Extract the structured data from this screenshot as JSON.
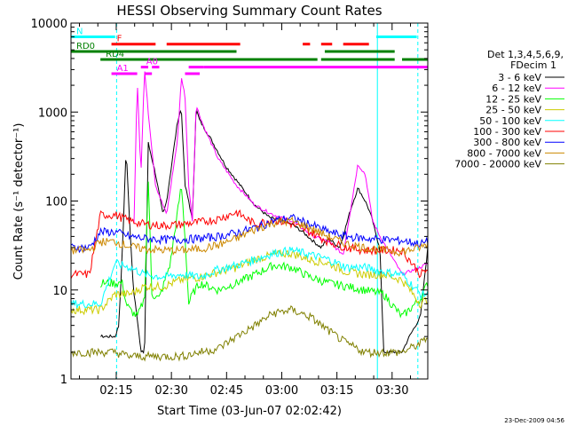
{
  "chart_data": {
    "type": "line",
    "title": "HESSI Observing Summary Count Rates",
    "xlabel": "Start Time (03-Jun-07 02:02:42)",
    "ylabel": "Count Rate (s⁻¹ detector⁻¹)",
    "y_scale": "log",
    "ylim": [
      1,
      10000
    ],
    "xlim_minutes": [
      0,
      97
    ],
    "x_tick_labels": [
      "02:15",
      "02:30",
      "02:45",
      "03:00",
      "03:15",
      "03:30"
    ],
    "x_tick_minutes": [
      12.3,
      27.3,
      42.3,
      57.3,
      72.3,
      87.3
    ],
    "y_tick_labels": [
      "1",
      "10",
      "100",
      "1000",
      "10000"
    ],
    "y_tick_values": [
      1,
      10,
      100,
      1000,
      10000
    ],
    "legend_header": [
      "Det 1,3,4,5,6,9,",
      "FDecim 1"
    ],
    "legend_position": "right",
    "series": [
      {
        "name": "3 - 6 keV",
        "color": "#000000",
        "x": [
          8,
          10,
          12,
          13,
          14,
          15,
          16,
          17,
          18,
          19,
          20,
          21,
          23,
          25,
          26,
          27,
          28,
          29,
          30,
          31,
          32,
          33,
          34,
          35,
          38,
          42,
          46,
          50,
          54,
          57,
          60,
          63,
          66,
          68,
          70,
          73,
          74,
          76,
          78,
          80,
          81,
          82,
          83,
          84,
          85,
          90,
          92,
          95,
          97
        ],
        "y": [
          3,
          3,
          3,
          4,
          30,
          400,
          50,
          10,
          5,
          2,
          2,
          450,
          200,
          70,
          100,
          200,
          400,
          800,
          1100,
          150,
          100,
          60,
          1100,
          800,
          500,
          250,
          150,
          90,
          65,
          60,
          55,
          45,
          35,
          30,
          38,
          30,
          40,
          80,
          140,
          100,
          80,
          60,
          40,
          30,
          2,
          2,
          3,
          5,
          30
        ]
      },
      {
        "name": "6 - 12 keV",
        "color": "#ff00ff",
        "x": [
          17,
          18,
          19,
          20,
          21,
          23,
          26,
          29,
          30,
          31,
          32,
          33,
          34,
          36,
          40,
          45,
          50,
          55,
          60,
          66,
          70,
          74,
          76,
          78,
          80,
          82,
          84,
          90,
          95,
          97
        ],
        "y": [
          30,
          2500,
          200,
          3000,
          1000,
          150,
          70,
          500,
          2500,
          1500,
          150,
          60,
          1200,
          700,
          300,
          150,
          90,
          70,
          60,
          40,
          35,
          25,
          80,
          260,
          200,
          60,
          40,
          15,
          18,
          20
        ]
      },
      {
        "name": "12 - 25 keV",
        "color": "#00ff00",
        "x": [
          8,
          12,
          14,
          15,
          16,
          18,
          20,
          21,
          22,
          24,
          27,
          30,
          31,
          32,
          33,
          35,
          40,
          45,
          50,
          55,
          60,
          65,
          70,
          75,
          80,
          85,
          90,
          95,
          97
        ],
        "y": [
          12,
          12,
          12,
          7,
          6,
          5,
          8,
          180,
          9,
          8,
          20,
          150,
          40,
          7,
          9,
          12,
          10,
          12,
          15,
          19,
          18,
          14,
          12,
          11,
          10,
          9,
          5,
          8,
          12
        ]
      },
      {
        "name": "25 - 50 keV",
        "color": "#cccc00",
        "x": [
          0,
          5,
          8,
          12,
          16,
          20,
          25,
          30,
          35,
          40,
          45,
          50,
          55,
          60,
          65,
          70,
          75,
          80,
          85,
          90,
          95,
          97
        ],
        "y": [
          6,
          6,
          6,
          9,
          9,
          11,
          11,
          13,
          14,
          16,
          18,
          22,
          25,
          26,
          22,
          20,
          16,
          15,
          15,
          13,
          7,
          8
        ]
      },
      {
        "name": "50 - 100 keV",
        "color": "#00ffff",
        "x": [
          0,
          5,
          8,
          12,
          16,
          20,
          25,
          30,
          35,
          40,
          45,
          50,
          55,
          60,
          65,
          70,
          75,
          80,
          85,
          90,
          95,
          97
        ],
        "y": [
          7,
          7,
          7,
          20,
          18,
          15,
          14,
          15,
          14,
          17,
          19,
          22,
          26,
          28,
          25,
          22,
          18,
          18,
          16,
          15,
          9,
          9
        ]
      },
      {
        "name": "100 - 300 keV",
        "color": "#ff0000",
        "x": [
          0,
          5,
          8,
          12,
          16,
          20,
          25,
          30,
          35,
          40,
          45,
          50,
          55,
          60,
          65,
          70,
          75,
          80,
          85,
          90,
          95,
          97
        ],
        "y": [
          15,
          15,
          70,
          70,
          60,
          55,
          53,
          55,
          58,
          63,
          75,
          55,
          62,
          55,
          45,
          35,
          30,
          28,
          28,
          28,
          15,
          17
        ]
      },
      {
        "name": "300 - 800 keV",
        "color": "#0000ff",
        "x": [
          0,
          5,
          8,
          12,
          16,
          20,
          25,
          30,
          35,
          40,
          45,
          50,
          55,
          60,
          65,
          70,
          75,
          80,
          85,
          90,
          95,
          97
        ],
        "y": [
          30,
          30,
          45,
          45,
          40,
          38,
          37,
          37,
          38,
          40,
          44,
          50,
          60,
          65,
          55,
          45,
          40,
          38,
          37,
          36,
          33,
          35
        ]
      },
      {
        "name": "800 - 7000 keV",
        "color": "#cc8800",
        "x": [
          0,
          5,
          8,
          12,
          16,
          20,
          25,
          30,
          35,
          40,
          45,
          50,
          55,
          60,
          65,
          70,
          75,
          80,
          85,
          90,
          95,
          97
        ],
        "y": [
          28,
          28,
          35,
          35,
          31,
          29,
          28,
          28,
          29,
          32,
          38,
          48,
          57,
          60,
          50,
          40,
          33,
          30,
          28,
          27,
          30,
          33
        ]
      },
      {
        "name": "7000 - 20000 keV",
        "color": "#808000",
        "x": [
          0,
          5,
          8,
          12,
          16,
          20,
          25,
          30,
          35,
          40,
          45,
          50,
          55,
          60,
          65,
          70,
          75,
          80,
          85,
          90,
          95,
          97
        ],
        "y": [
          2,
          2,
          2,
          2,
          1.8,
          1.8,
          1.8,
          1.8,
          2,
          2.2,
          3,
          4,
          5.5,
          6,
          5,
          3.5,
          2.5,
          2,
          2,
          2,
          2.5,
          3
        ]
      }
    ],
    "flags": [
      {
        "label": "N",
        "color": "#00ffff",
        "y": 7000,
        "segments": [
          [
            0,
            12
          ],
          [
            83,
            94
          ]
        ]
      },
      {
        "label": "F",
        "color": "#ff0000",
        "y": 5800,
        "segments": [
          [
            11,
            23
          ],
          [
            26,
            46
          ],
          [
            63,
            65
          ],
          [
            68,
            71
          ],
          [
            74,
            81
          ]
        ]
      },
      {
        "label": "RD0",
        "color": "#008000",
        "y": 4800,
        "segments": [
          [
            0,
            45
          ],
          [
            69,
            88
          ]
        ]
      },
      {
        "label": "RD4",
        "color": "#008000",
        "y": 3900,
        "segments": [
          [
            8,
            45
          ],
          [
            45,
            67
          ],
          [
            68,
            88
          ],
          [
            90,
            97
          ]
        ]
      },
      {
        "label": "A0",
        "color": "#ff00ff",
        "y": 3200,
        "segments": [
          [
            19,
            21
          ],
          [
            22,
            24
          ],
          [
            32,
            36
          ],
          [
            36,
            97
          ]
        ]
      },
      {
        "label": "A1",
        "color": "#ff00ff",
        "y": 2700,
        "segments": [
          [
            11,
            18
          ],
          [
            20,
            22
          ],
          [
            31,
            35
          ]
        ]
      }
    ],
    "vertical_markers": [
      {
        "x": 0,
        "color": "#00ffff",
        "style": "solid"
      },
      {
        "x": 12.4,
        "color": "#00ffff",
        "style": "dashed"
      },
      {
        "x": 83.3,
        "color": "#00ffff",
        "style": "solid"
      },
      {
        "x": 94.3,
        "color": "#00ffff",
        "style": "dashed"
      }
    ]
  },
  "footer": {
    "timestamp": "23-Dec-2009 04:56"
  }
}
